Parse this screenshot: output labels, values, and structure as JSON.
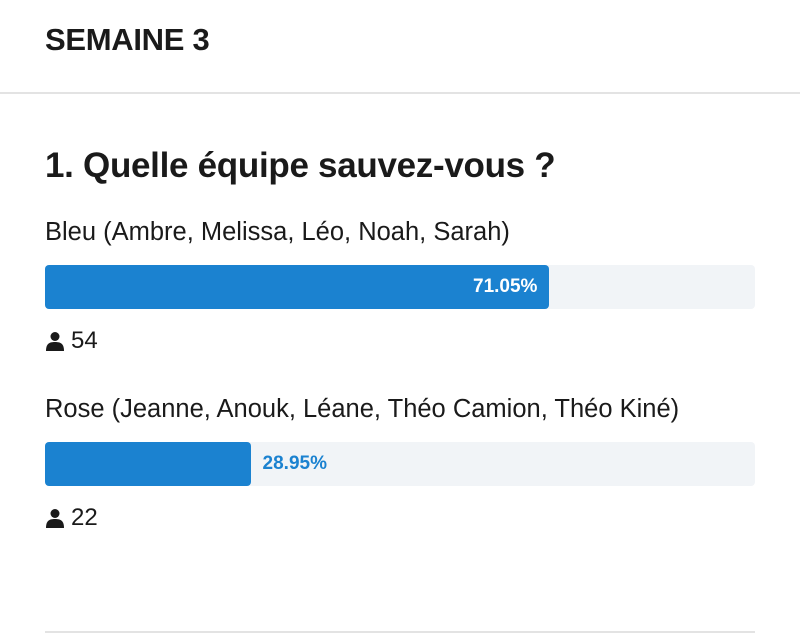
{
  "header": {
    "title": "SEMAINE 3"
  },
  "question": {
    "title": "1. Quelle équipe sauvez-vous ?",
    "options": [
      {
        "label": "Bleu (Ambre, Melissa, Léo, Noah, Sarah)",
        "percent": 71.05,
        "percent_label": "71.05%",
        "votes": 54
      },
      {
        "label": "Rose (Jeanne, Anouk, Léane, Théo Camion, Théo Kiné)",
        "percent": 28.95,
        "percent_label": "28.95%",
        "votes": 22
      }
    ]
  }
}
